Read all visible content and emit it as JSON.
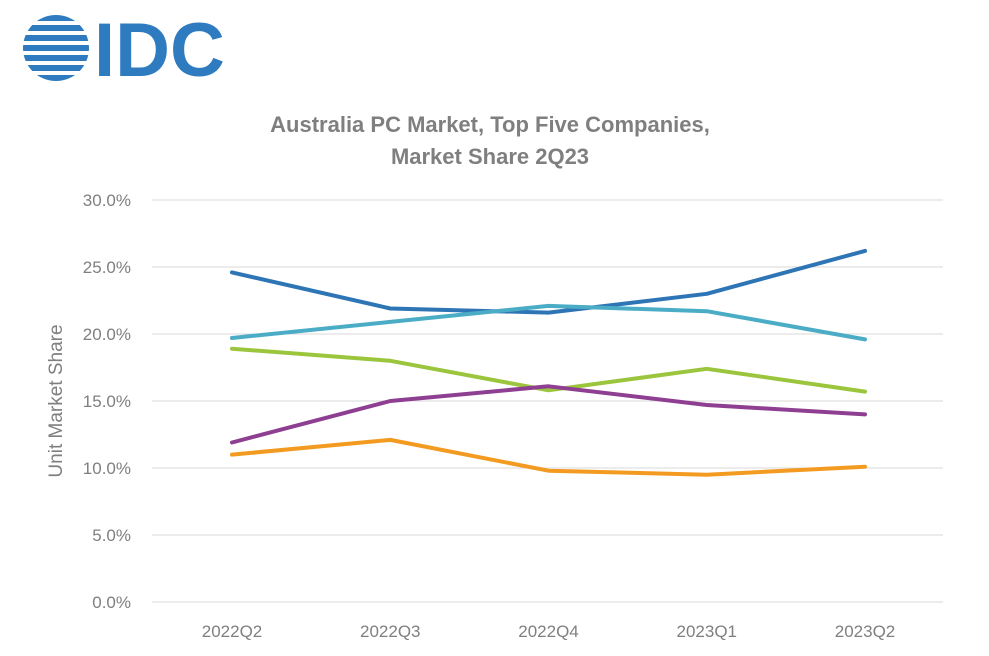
{
  "logo": {
    "text": "IDC",
    "color": "#2f7bbf"
  },
  "chart_data": {
    "type": "line",
    "title": "Australia PC Market, Top Five Companies,",
    "subtitle": "Market Share 2Q23",
    "xlabel": "",
    "ylabel": "Unit Market Share",
    "categories": [
      "2022Q2",
      "2022Q3",
      "2022Q4",
      "2023Q1",
      "2023Q2"
    ],
    "ylim": [
      0,
      30
    ],
    "yticks": [
      0,
      5,
      10,
      15,
      20,
      25,
      30
    ],
    "ytick_labels": [
      "0.0%",
      "5.0%",
      "10.0%",
      "15.0%",
      "20.0%",
      "25.0%",
      "30.0%"
    ],
    "grid": true,
    "legend": "none",
    "series": [
      {
        "color": "#2e75b6",
        "values": [
          24.6,
          21.9,
          21.6,
          23.0,
          26.2
        ]
      },
      {
        "color": "#4bacc6",
        "values": [
          19.7,
          20.9,
          22.1,
          21.7,
          19.6
        ]
      },
      {
        "color": "#9bc53d",
        "values": [
          18.9,
          18.0,
          15.8,
          17.4,
          15.7
        ]
      },
      {
        "color": "#8e3f91",
        "values": [
          11.9,
          15.0,
          16.1,
          14.7,
          14.0
        ]
      },
      {
        "color": "#f39a21",
        "values": [
          11.0,
          12.1,
          9.8,
          9.5,
          10.1
        ]
      }
    ]
  }
}
